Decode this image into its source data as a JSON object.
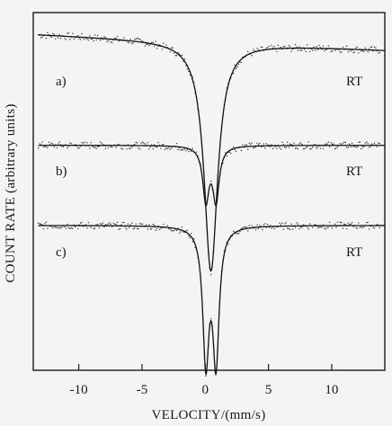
{
  "chart_data": {
    "type": "line",
    "xlabel": "VELOCITY/(mm/s)",
    "ylabel": "COUNT RATE  (arbitrary  units)",
    "xlim": [
      -13.6,
      14.2
    ],
    "ylim": [
      0,
      1
    ],
    "x_ticks": [
      -10,
      -5,
      0,
      5,
      10
    ],
    "x_tick_labels": [
      "-10",
      "-5",
      "0",
      "5",
      "10"
    ],
    "y_ticks_shown": false,
    "grid": false,
    "legend": "none",
    "series": [
      {
        "label": "a)",
        "temperature_label": "RT",
        "baseline": 0.918,
        "baseline_slope": -0.0016,
        "components": [
          {
            "center": 0.45,
            "hwhm": 0.65,
            "depth": 0.64
          }
        ]
      },
      {
        "label": "b)",
        "temperature_label": "RT",
        "baseline": 0.629,
        "baseline_slope": 0.0,
        "components": [
          {
            "center": 0.05,
            "hwhm": 0.3,
            "depth": 0.15
          },
          {
            "center": 0.85,
            "hwhm": 0.3,
            "depth": 0.15
          }
        ]
      },
      {
        "label": "c)",
        "temperature_label": "RT",
        "baseline": 0.405,
        "baseline_slope": 0.0,
        "components": [
          {
            "center": 0.05,
            "hwhm": 0.3,
            "depth": 0.37
          },
          {
            "center": 0.85,
            "hwhm": 0.3,
            "depth": 0.37
          }
        ]
      }
    ]
  }
}
